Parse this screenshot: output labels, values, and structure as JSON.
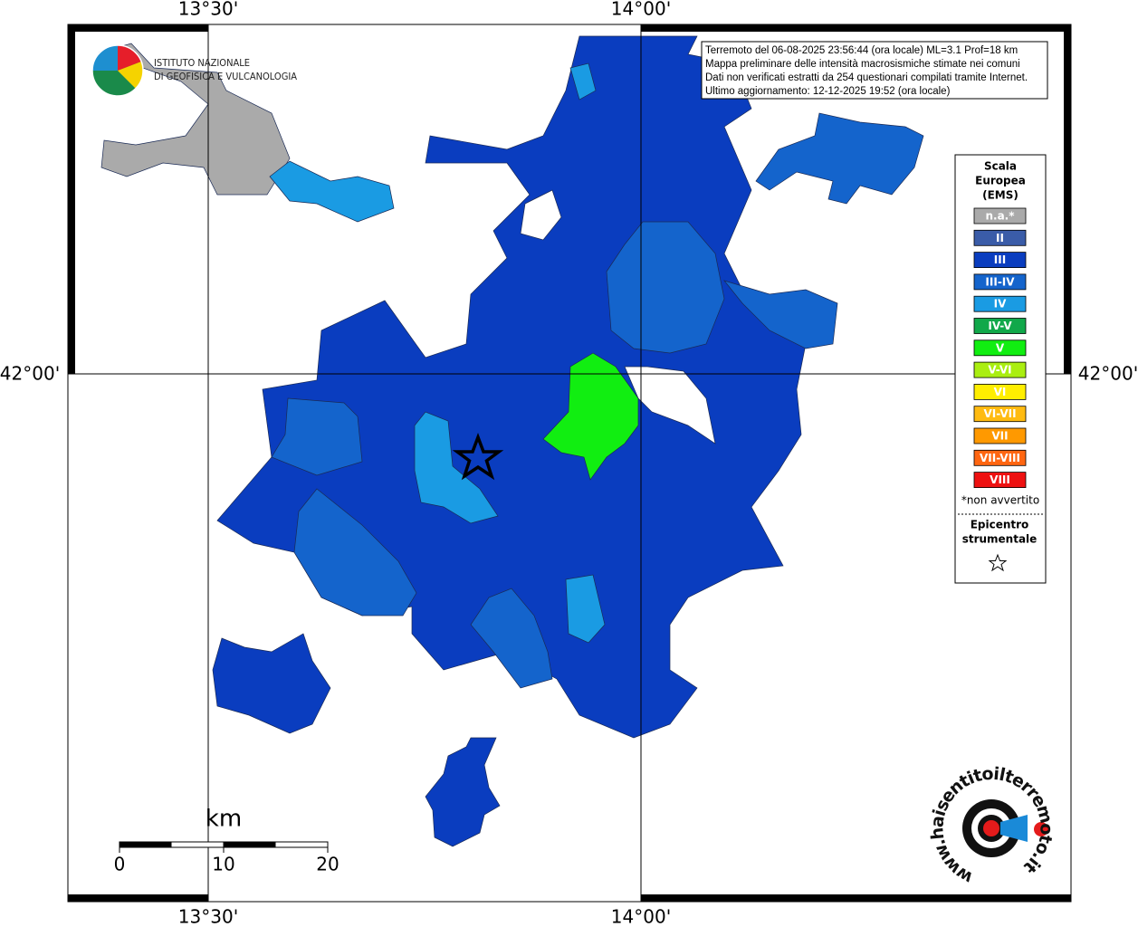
{
  "graticule": {
    "lon_labels": [
      "13°30'",
      "14°00'"
    ],
    "lat_labels": [
      "42°00'"
    ]
  },
  "info": {
    "lines": [
      "Terremoto del 06-08-2025 23:56:44 (ora locale) ML=3.1 Prof=18 km",
      "Mappa preliminare delle intensità macrosismiche stimate nei comuni",
      "Dati non verificati estratti da 254 questionari compilati tramite Internet.",
      "Ultimo aggiornamento: 12-12-2025 19:52 (ora locale)"
    ]
  },
  "logo": {
    "lines": [
      "ISTITUTO NAZIONALE",
      "DI GEOFISICA E VULCANOLOGIA"
    ],
    "site": "www.haisentitoilterremoto.it"
  },
  "legend": {
    "title": [
      "Scala",
      "Europea",
      "(EMS)"
    ],
    "items": [
      {
        "label": "n.a.*",
        "color": "#aaaaaa"
      },
      {
        "label": "II",
        "color": "#3a5ca8"
      },
      {
        "label": "III",
        "color": "#0a3dbf"
      },
      {
        "label": "III-IV",
        "color": "#1464cc"
      },
      {
        "label": "IV",
        "color": "#1a9be3"
      },
      {
        "label": "IV-V",
        "color": "#11a84a"
      },
      {
        "label": "V",
        "color": "#11ee11"
      },
      {
        "label": "V-VI",
        "color": "#aaee11"
      },
      {
        "label": "VI",
        "color": "#ffee00"
      },
      {
        "label": "VI-VII",
        "color": "#ffbb11"
      },
      {
        "label": "VII",
        "color": "#ff9900"
      },
      {
        "label": "VII-VIII",
        "color": "#ff6611"
      },
      {
        "label": "VIII",
        "color": "#ee1111"
      }
    ],
    "note": "*non avvertito",
    "epicenter": [
      "Epicentro",
      "strumentale"
    ]
  },
  "scale_bar": {
    "unit": "km",
    "labels": [
      "0",
      "10",
      "20"
    ]
  }
}
